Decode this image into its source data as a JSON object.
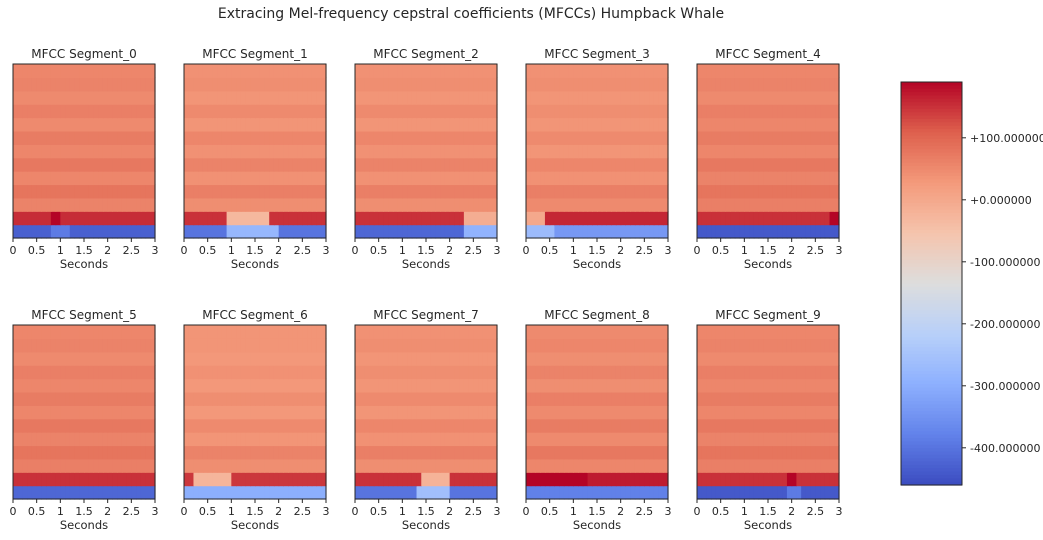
{
  "figure": {
    "title": "Extracing Mel-frequency cepstral coefficients (MFCCs) Humpback Whale"
  },
  "chart_data": {
    "type": "heatmap",
    "colormap": "coolwarm",
    "vmin": -460,
    "vmax": 190,
    "n_coefficients": 13,
    "n_frames": 30,
    "x_ticks": [
      "0",
      "0.5",
      "1",
      "1.5",
      "2",
      "2.5",
      "3"
    ],
    "x_tick_values": [
      0,
      0.5,
      1,
      1.5,
      2,
      2.5,
      3
    ],
    "xlim": [
      0,
      3
    ],
    "xlabel": "Seconds",
    "row_levels_note_order": "coefficient 0 (bottom) to coefficient 12 (top)",
    "colorbar": {
      "ticks": [
        "+100.000000",
        "+0.000000",
        "-100.000000",
        "-200.000000",
        "-300.000000",
        "-400.000000"
      ],
      "tick_values": [
        100,
        0,
        -100,
        -200,
        -300,
        -400
      ]
    },
    "panels": [
      {
        "title": "MFCC Segment_0",
        "rows": [
          -430,
          155,
          60,
          80,
          55,
          75,
          55,
          70,
          50,
          65,
          50,
          60,
          55
        ],
        "events": [
          {
            "row": 0,
            "from": 0.8,
            "to": 1.2,
            "delta": 40
          },
          {
            "row": 1,
            "from": 0.8,
            "to": 1.0,
            "delta": 40
          }
        ]
      },
      {
        "title": "MFCC Segment_1",
        "rows": [
          -400,
          150,
          45,
          65,
          40,
          60,
          40,
          55,
          35,
          50,
          35,
          45,
          40
        ],
        "events": [
          {
            "row": 0,
            "from": 0.9,
            "to": 2.0,
            "delta": 120
          },
          {
            "row": 1,
            "from": 0.9,
            "to": 1.8,
            "delta": -180
          }
        ]
      },
      {
        "title": "MFCC Segment_2",
        "rows": [
          -420,
          150,
          45,
          65,
          40,
          60,
          40,
          55,
          35,
          50,
          35,
          45,
          40
        ],
        "events": [
          {
            "row": 0,
            "from": 2.3,
            "to": 3.0,
            "delta": 130
          },
          {
            "row": 1,
            "from": 2.3,
            "to": 3.0,
            "delta": -160
          }
        ]
      },
      {
        "title": "MFCC Segment_3",
        "rows": [
          -340,
          160,
          50,
          65,
          40,
          55,
          35,
          50,
          35,
          45,
          35,
          45,
          40
        ],
        "events": [
          {
            "row": 0,
            "from": 0.0,
            "to": 0.6,
            "delta": 70
          },
          {
            "row": 1,
            "from": 0.0,
            "to": 0.4,
            "delta": -160
          }
        ]
      },
      {
        "title": "MFCC Segment_4",
        "rows": [
          -440,
          150,
          65,
          80,
          60,
          75,
          55,
          70,
          55,
          65,
          50,
          60,
          55
        ],
        "events": [
          {
            "row": 1,
            "from": 2.8,
            "to": 3.0,
            "delta": 40
          }
        ]
      },
      {
        "title": "MFCC Segment_5",
        "rows": [
          -420,
          150,
          65,
          80,
          60,
          75,
          55,
          70,
          55,
          65,
          50,
          60,
          55
        ],
        "events": []
      },
      {
        "title": "MFCC Segment_6",
        "rows": [
          -300,
          145,
          45,
          60,
          35,
          50,
          30,
          45,
          30,
          40,
          30,
          35,
          35
        ],
        "events": [
          {
            "row": 1,
            "from": 0.2,
            "to": 1.0,
            "delta": -170
          }
        ]
      },
      {
        "title": "MFCC Segment_7",
        "rows": [
          -400,
          150,
          45,
          65,
          40,
          55,
          35,
          50,
          35,
          45,
          35,
          45,
          40
        ],
        "events": [
          {
            "row": 0,
            "from": 1.3,
            "to": 2.0,
            "delta": 140
          },
          {
            "row": 1,
            "from": 1.4,
            "to": 2.0,
            "delta": -170
          }
        ]
      },
      {
        "title": "MFCC Segment_8",
        "rows": [
          -380,
          170,
          55,
          75,
          50,
          70,
          50,
          65,
          45,
          60,
          45,
          55,
          50
        ],
        "events": [
          {
            "row": 1,
            "from": 0.0,
            "to": 1.3,
            "delta": 25
          }
        ]
      },
      {
        "title": "MFCC Segment_9",
        "rows": [
          -440,
          150,
          65,
          80,
          60,
          75,
          55,
          70,
          55,
          65,
          50,
          60,
          55
        ],
        "events": [
          {
            "row": 0,
            "from": 1.9,
            "to": 2.2,
            "delta": 50
          },
          {
            "row": 1,
            "from": 1.9,
            "to": 2.1,
            "delta": 40
          }
        ]
      }
    ]
  }
}
